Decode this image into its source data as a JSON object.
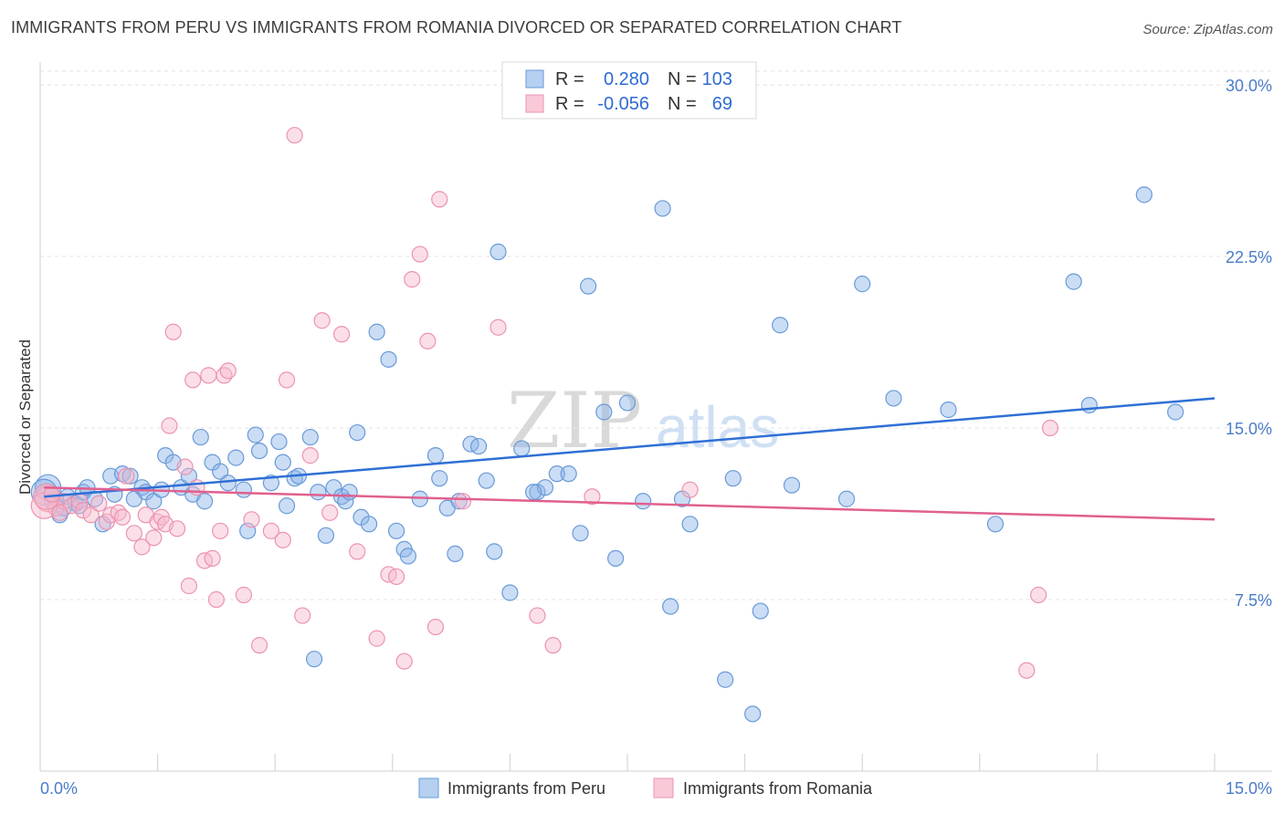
{
  "chart_data": {
    "type": "scatter",
    "title": "IMMIGRANTS FROM PERU VS IMMIGRANTS FROM ROMANIA DIVORCED OR SEPARATED CORRELATION CHART",
    "source": "Source: ZipAtlas.com",
    "ylabel": "Divorced or Separated",
    "xlim": [
      0,
      15
    ],
    "ylim": [
      0,
      31
    ],
    "x_tick_labels": [
      {
        "value": 0,
        "label": "0.0%"
      },
      {
        "value": 15,
        "label": "15.0%"
      }
    ],
    "y_tick_labels": [
      {
        "value": 7.5,
        "label": "7.5%"
      },
      {
        "value": 15,
        "label": "15.0%"
      },
      {
        "value": 22.5,
        "label": "22.5%"
      },
      {
        "value": 30,
        "label": "30.0%"
      }
    ],
    "legend": [
      {
        "r_label": "R =",
        "r_value": "0.280",
        "n_label": "N =",
        "n_value": "103"
      },
      {
        "r_label": "R =",
        "r_value": "-0.056",
        "n_label": "N =",
        "n_value": "69"
      }
    ],
    "watermark": {
      "zip": "ZIP",
      "atlas": "atlas"
    },
    "series": [
      {
        "name": "Immigrants from Peru",
        "color": "#8ab4e8",
        "stroke": "#6a9ad8",
        "trend_color": "#2f6fd6",
        "trend": {
          "x0": 0.05,
          "y0": 12.0,
          "x1": 15.0,
          "y1": 16.3
        },
        "points": [
          [
            0.1,
            12.4
          ],
          [
            0.15,
            11.8
          ],
          [
            0.2,
            11.9
          ],
          [
            0.25,
            11.2
          ],
          [
            0.3,
            11.5
          ],
          [
            0.35,
            12.0
          ],
          [
            0.45,
            11.7
          ],
          [
            0.5,
            11.6
          ],
          [
            0.55,
            12.2
          ],
          [
            0.6,
            12.4
          ],
          [
            0.7,
            11.9
          ],
          [
            0.8,
            10.8
          ],
          [
            0.9,
            12.9
          ],
          [
            0.95,
            12.1
          ],
          [
            1.05,
            13.0
          ],
          [
            1.15,
            12.9
          ],
          [
            1.2,
            11.9
          ],
          [
            1.3,
            12.4
          ],
          [
            1.35,
            12.2
          ],
          [
            1.45,
            11.8
          ],
          [
            1.55,
            12.3
          ],
          [
            1.6,
            13.8
          ],
          [
            1.7,
            13.5
          ],
          [
            1.8,
            12.4
          ],
          [
            1.9,
            12.9
          ],
          [
            1.95,
            12.1
          ],
          [
            2.05,
            14.6
          ],
          [
            2.1,
            11.8
          ],
          [
            2.2,
            13.5
          ],
          [
            2.3,
            13.1
          ],
          [
            2.4,
            12.6
          ],
          [
            2.5,
            13.7
          ],
          [
            2.6,
            12.3
          ],
          [
            2.65,
            10.5
          ],
          [
            2.75,
            14.7
          ],
          [
            2.8,
            14.0
          ],
          [
            2.95,
            12.6
          ],
          [
            3.05,
            14.4
          ],
          [
            3.1,
            13.5
          ],
          [
            3.15,
            11.6
          ],
          [
            3.25,
            12.8
          ],
          [
            3.3,
            12.9
          ],
          [
            3.45,
            14.6
          ],
          [
            3.55,
            12.2
          ],
          [
            3.65,
            10.3
          ],
          [
            3.75,
            12.4
          ],
          [
            3.85,
            12.0
          ],
          [
            3.9,
            11.8
          ],
          [
            3.95,
            12.2
          ],
          [
            4.05,
            14.8
          ],
          [
            4.1,
            11.1
          ],
          [
            4.2,
            10.8
          ],
          [
            4.3,
            19.2
          ],
          [
            4.45,
            18.0
          ],
          [
            4.55,
            10.5
          ],
          [
            4.65,
            9.7
          ],
          [
            4.7,
            9.4
          ],
          [
            4.85,
            11.9
          ],
          [
            5.05,
            13.8
          ],
          [
            5.1,
            12.8
          ],
          [
            5.2,
            11.5
          ],
          [
            5.3,
            9.5
          ],
          [
            5.35,
            11.8
          ],
          [
            5.5,
            14.3
          ],
          [
            5.6,
            14.2
          ],
          [
            5.7,
            12.7
          ],
          [
            5.8,
            9.6
          ],
          [
            5.85,
            22.7
          ],
          [
            6.0,
            7.8
          ],
          [
            6.15,
            14.1
          ],
          [
            6.35,
            12.2
          ],
          [
            6.45,
            12.4
          ],
          [
            6.6,
            13.0
          ],
          [
            6.75,
            13.0
          ],
          [
            6.9,
            10.4
          ],
          [
            7.0,
            21.2
          ],
          [
            7.2,
            15.7
          ],
          [
            7.35,
            9.3
          ],
          [
            7.5,
            16.1
          ],
          [
            7.7,
            11.8
          ],
          [
            7.95,
            24.6
          ],
          [
            8.05,
            7.2
          ],
          [
            8.2,
            11.9
          ],
          [
            8.3,
            10.8
          ],
          [
            8.75,
            4.0
          ],
          [
            8.85,
            12.8
          ],
          [
            9.1,
            2.5
          ],
          [
            9.2,
            7.0
          ],
          [
            9.45,
            19.5
          ],
          [
            9.6,
            12.5
          ],
          [
            10.3,
            11.9
          ],
          [
            10.5,
            21.3
          ],
          [
            10.9,
            16.3
          ],
          [
            11.6,
            15.8
          ],
          [
            12.2,
            10.8
          ],
          [
            13.2,
            21.4
          ],
          [
            13.4,
            16.0
          ],
          [
            14.1,
            25.2
          ],
          [
            14.5,
            15.7
          ],
          [
            3.5,
            4.9
          ],
          [
            6.3,
            12.2
          ],
          [
            0.05,
            12.2
          ]
        ]
      },
      {
        "name": "Immigrants from Romania",
        "color": "#f6b8cc",
        "stroke": "#ec93b0",
        "trend_color": "#e0608f",
        "trend": {
          "x0": 0.05,
          "y0": 12.4,
          "x1": 15.0,
          "y1": 11.0
        },
        "points": [
          [
            0.1,
            11.9
          ],
          [
            0.2,
            11.5
          ],
          [
            0.3,
            11.8
          ],
          [
            0.4,
            11.6
          ],
          [
            0.5,
            11.8
          ],
          [
            0.55,
            11.4
          ],
          [
            0.65,
            11.2
          ],
          [
            0.75,
            11.7
          ],
          [
            0.85,
            10.9
          ],
          [
            0.9,
            11.2
          ],
          [
            1.0,
            11.3
          ],
          [
            1.05,
            11.1
          ],
          [
            1.1,
            12.9
          ],
          [
            1.2,
            10.4
          ],
          [
            1.3,
            9.8
          ],
          [
            1.35,
            11.2
          ],
          [
            1.45,
            10.2
          ],
          [
            1.5,
            10.9
          ],
          [
            1.55,
            11.1
          ],
          [
            1.6,
            10.8
          ],
          [
            1.65,
            15.1
          ],
          [
            1.7,
            19.2
          ],
          [
            1.75,
            10.6
          ],
          [
            1.85,
            13.3
          ],
          [
            1.9,
            8.1
          ],
          [
            1.95,
            17.1
          ],
          [
            2.0,
            12.4
          ],
          [
            2.1,
            9.2
          ],
          [
            2.15,
            17.3
          ],
          [
            2.2,
            9.3
          ],
          [
            2.25,
            7.5
          ],
          [
            2.3,
            10.5
          ],
          [
            2.35,
            17.3
          ],
          [
            2.4,
            17.5
          ],
          [
            2.6,
            7.7
          ],
          [
            2.7,
            11.0
          ],
          [
            2.8,
            5.5
          ],
          [
            2.95,
            10.5
          ],
          [
            3.1,
            10.1
          ],
          [
            3.15,
            17.1
          ],
          [
            3.25,
            27.8
          ],
          [
            3.35,
            6.8
          ],
          [
            3.45,
            13.8
          ],
          [
            3.6,
            19.7
          ],
          [
            3.7,
            11.3
          ],
          [
            3.85,
            19.1
          ],
          [
            4.05,
            9.6
          ],
          [
            4.3,
            5.8
          ],
          [
            4.45,
            8.6
          ],
          [
            4.55,
            8.5
          ],
          [
            4.65,
            4.8
          ],
          [
            4.75,
            21.5
          ],
          [
            4.85,
            22.6
          ],
          [
            4.95,
            18.8
          ],
          [
            5.05,
            6.3
          ],
          [
            5.1,
            25.0
          ],
          [
            5.4,
            11.8
          ],
          [
            5.85,
            19.4
          ],
          [
            6.35,
            6.8
          ],
          [
            6.55,
            5.5
          ],
          [
            7.05,
            12.0
          ],
          [
            8.3,
            12.3
          ],
          [
            12.6,
            4.4
          ],
          [
            12.75,
            7.7
          ],
          [
            12.9,
            15.0
          ],
          [
            0.05,
            11.6
          ],
          [
            0.08,
            12.0
          ],
          [
            0.15,
            12.1
          ],
          [
            0.25,
            11.3
          ]
        ]
      }
    ]
  },
  "bottom_legend": {
    "peru": "Immigrants from Peru",
    "romania": "Immigrants from Romania"
  }
}
